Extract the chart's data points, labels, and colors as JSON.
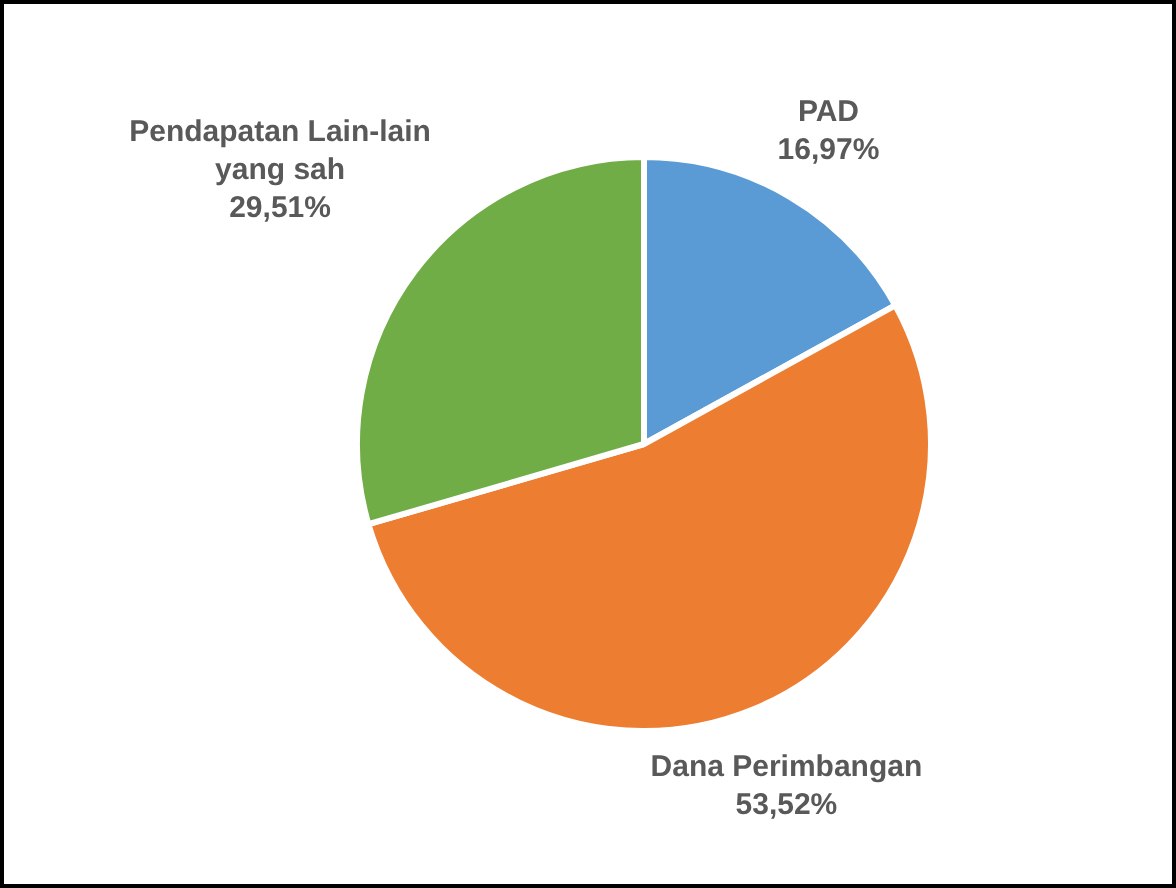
{
  "chart_data": {
    "type": "pie",
    "categories": [
      "PAD",
      "Dana Perimbangan",
      "Pendapatan Lain-lain yang sah"
    ],
    "values": [
      16.97,
      53.52,
      29.51
    ],
    "value_labels": [
      "16,97%",
      "53,52%",
      "29,51%"
    ],
    "colors": [
      "#5b9bd5",
      "#ed7d31",
      "#70ad47"
    ],
    "legend": false
  }
}
